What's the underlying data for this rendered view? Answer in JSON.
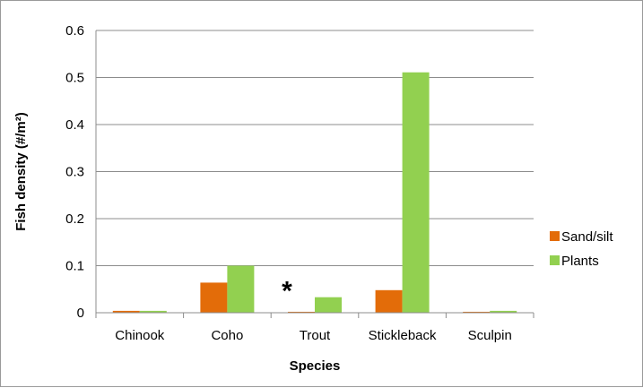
{
  "chart_data": {
    "type": "bar",
    "categories": [
      "Chinook",
      "Coho",
      "Trout",
      "Stickleback",
      "Sculpin"
    ],
    "series": [
      {
        "name": "Sand/silt",
        "values": [
          0.004,
          0.064,
          0.002,
          0.048,
          0.002
        ],
        "color": "#e36c09"
      },
      {
        "name": "Plants",
        "values": [
          0.004,
          0.1,
          0.033,
          0.511,
          0.004
        ],
        "color": "#92d050"
      }
    ],
    "xlabel": "Species",
    "ylabel": "Fish density (#/m²)",
    "ylim": [
      0,
      0.6
    ],
    "yticks": [
      0,
      0.1,
      0.2,
      0.3,
      0.4,
      0.5,
      0.6
    ],
    "ytick_labels": [
      "0",
      "0.1",
      "0.2",
      "0.3",
      "0.4",
      "0.5",
      "0.6"
    ],
    "grid": true,
    "legend_position": "right",
    "annotations": [
      {
        "text": "*",
        "category": "Trout",
        "series": "Plants"
      }
    ]
  }
}
